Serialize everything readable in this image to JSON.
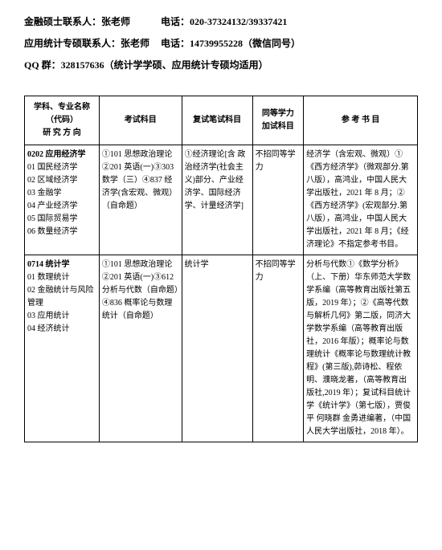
{
  "header": {
    "line1_label": "金融硕士联系人：",
    "line1_name": "张老师",
    "line1_tel_label": "电话：",
    "line1_tel": "020-37324132/39337421",
    "line2_label": "应用统计专硕联系人：",
    "line2_name": "张老师",
    "line2_tel_label": "电话：",
    "line2_tel": "14739955228（微信同号）",
    "line3_label": "QQ 群：",
    "line3_val": "328157636（统计学学硕、应用统计专硕均适用）"
  },
  "table": {
    "headers": {
      "col1a": "学科、专业名称（代码）",
      "col1b": "研 究 方 向",
      "col2": "考试科目",
      "col3": "复试笔试科目",
      "col4a": "同等学力",
      "col4b": "加试科目",
      "col5": "参 考 书 目"
    },
    "rows": [
      {
        "major_code": "0202 应用经济学",
        "directions": [
          "01 国民经济学",
          "02 区域经济学",
          "03 金融学",
          "04 产业经济学",
          "05 国际贸易学",
          "06 数量经济学"
        ],
        "exam": "①101 思想政治理论②201 英语(一)③303 数学（三）④837 经济学(含宏观、微观）（自命题）",
        "retest": "①经济理论[含 政治经济学(社会主义)部分、产业经济学、国际经济学、计量经济学]",
        "equiv": "不招同等学力",
        "refs": "经济学（含宏观、微观）①《西方经济学》（微观部分.第八版），高鸿业，中国人民大学出版社，2021 年 8 月；② 《西方经济学》(宏观部分.第八版），高鸿业，中国人民大学出版社，2021 年 8 月；《经济理论》不指定参考书目。"
      },
      {
        "major_code": "0714 统计学",
        "directions": [
          "01 数理统计",
          "02 金融统计与风险管理",
          "03 应用统计",
          "04 经济统计"
        ],
        "exam": "①101 思想政治理论②201 英语(一)③612 分析与代数（自命题）④836 概率论与数理统计（自命题）",
        "retest": "统计学",
        "equiv": "不招同等学力",
        "refs": "分析与代数①《数学分析》（上、下册）华东师范大学数学系编（高等教育出版社第五版，2019 年）；②《高等代数与解析几何》第二版，同济大学数学系编（高等教育出版社，2016 年版）；概率论与数理统计《概率论与数理统计教程》(第三版),茆诗松、程依明、濮晓龙著，（高等教育出版社,2019 年）；复试科目统计学《统计学》（第七版），贾俊平 何晓群 金勇进编著，（中国人民大学出版社，2018 年）。"
      }
    ]
  }
}
